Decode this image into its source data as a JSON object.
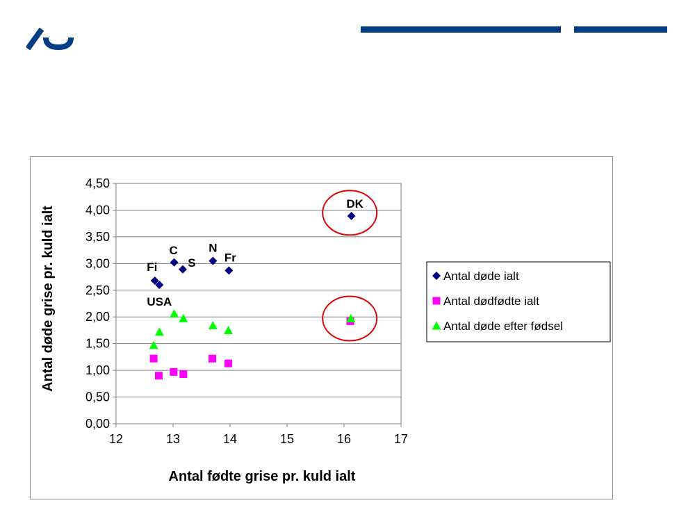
{
  "colors": {
    "brand": "#003d85",
    "series_total": "#000080",
    "series_stillborn": "#ff00ff",
    "series_after_birth": "#00ff00",
    "highlight_circle": "#e00000"
  },
  "chart_data": {
    "type": "scatter",
    "xlabel": "Antal fødte grise pr. kuld ialt",
    "ylabel": "Antal døde grise pr. kuld ialt",
    "xlim": [
      12,
      17
    ],
    "ylim": [
      0,
      4.5
    ],
    "x_ticks": [
      "12",
      "13",
      "14",
      "15",
      "16",
      "17"
    ],
    "y_ticks": [
      "0,00",
      "0,50",
      "1,00",
      "1,50",
      "2,00",
      "2,50",
      "3,00",
      "3,50",
      "4,00",
      "4,50"
    ],
    "grid": "horizontal",
    "legend_position": "right",
    "series": [
      {
        "name": "Antal døde ialt",
        "marker": "diamond",
        "color": "#000080",
        "points": [
          {
            "x": 12.68,
            "y": 2.68
          },
          {
            "x": 12.76,
            "y": 2.6
          },
          {
            "x": 13.02,
            "y": 3.02
          },
          {
            "x": 13.17,
            "y": 2.89
          },
          {
            "x": 13.7,
            "y": 3.05
          },
          {
            "x": 13.98,
            "y": 2.87
          },
          {
            "x": 16.13,
            "y": 3.89
          }
        ]
      },
      {
        "name": "Antal dødfødte ialt",
        "marker": "square",
        "color": "#ff00ff",
        "points": [
          {
            "x": 12.66,
            "y": 1.22
          },
          {
            "x": 12.75,
            "y": 0.9
          },
          {
            "x": 13.01,
            "y": 0.97
          },
          {
            "x": 13.18,
            "y": 0.93
          },
          {
            "x": 13.69,
            "y": 1.22
          },
          {
            "x": 13.97,
            "y": 1.13
          },
          {
            "x": 16.11,
            "y": 1.92
          }
        ]
      },
      {
        "name": "Antal døde efter fødsel",
        "marker": "triangle",
        "color": "#00ff00",
        "points": [
          {
            "x": 12.66,
            "y": 1.47
          },
          {
            "x": 12.76,
            "y": 1.72
          },
          {
            "x": 13.02,
            "y": 2.06
          },
          {
            "x": 13.18,
            "y": 1.97
          },
          {
            "x": 13.7,
            "y": 1.84
          },
          {
            "x": 13.97,
            "y": 1.75
          },
          {
            "x": 16.12,
            "y": 1.97
          }
        ]
      }
    ],
    "annotations": [
      {
        "text": "Fi",
        "x": 12.68,
        "y": 2.68
      },
      {
        "text": "USA",
        "x": 12.76,
        "y": 2.6
      },
      {
        "text": "C",
        "x": 13.02,
        "y": 3.02
      },
      {
        "text": "S",
        "x": 13.17,
        "y": 2.89
      },
      {
        "text": "N",
        "x": 13.7,
        "y": 3.05
      },
      {
        "text": "Fr",
        "x": 13.98,
        "y": 2.87
      },
      {
        "text": "DK",
        "x": 16.13,
        "y": 3.89
      }
    ],
    "highlight_circles": [
      {
        "x": 16.1,
        "y": 3.95
      },
      {
        "x": 16.1,
        "y": 1.97
      }
    ]
  }
}
